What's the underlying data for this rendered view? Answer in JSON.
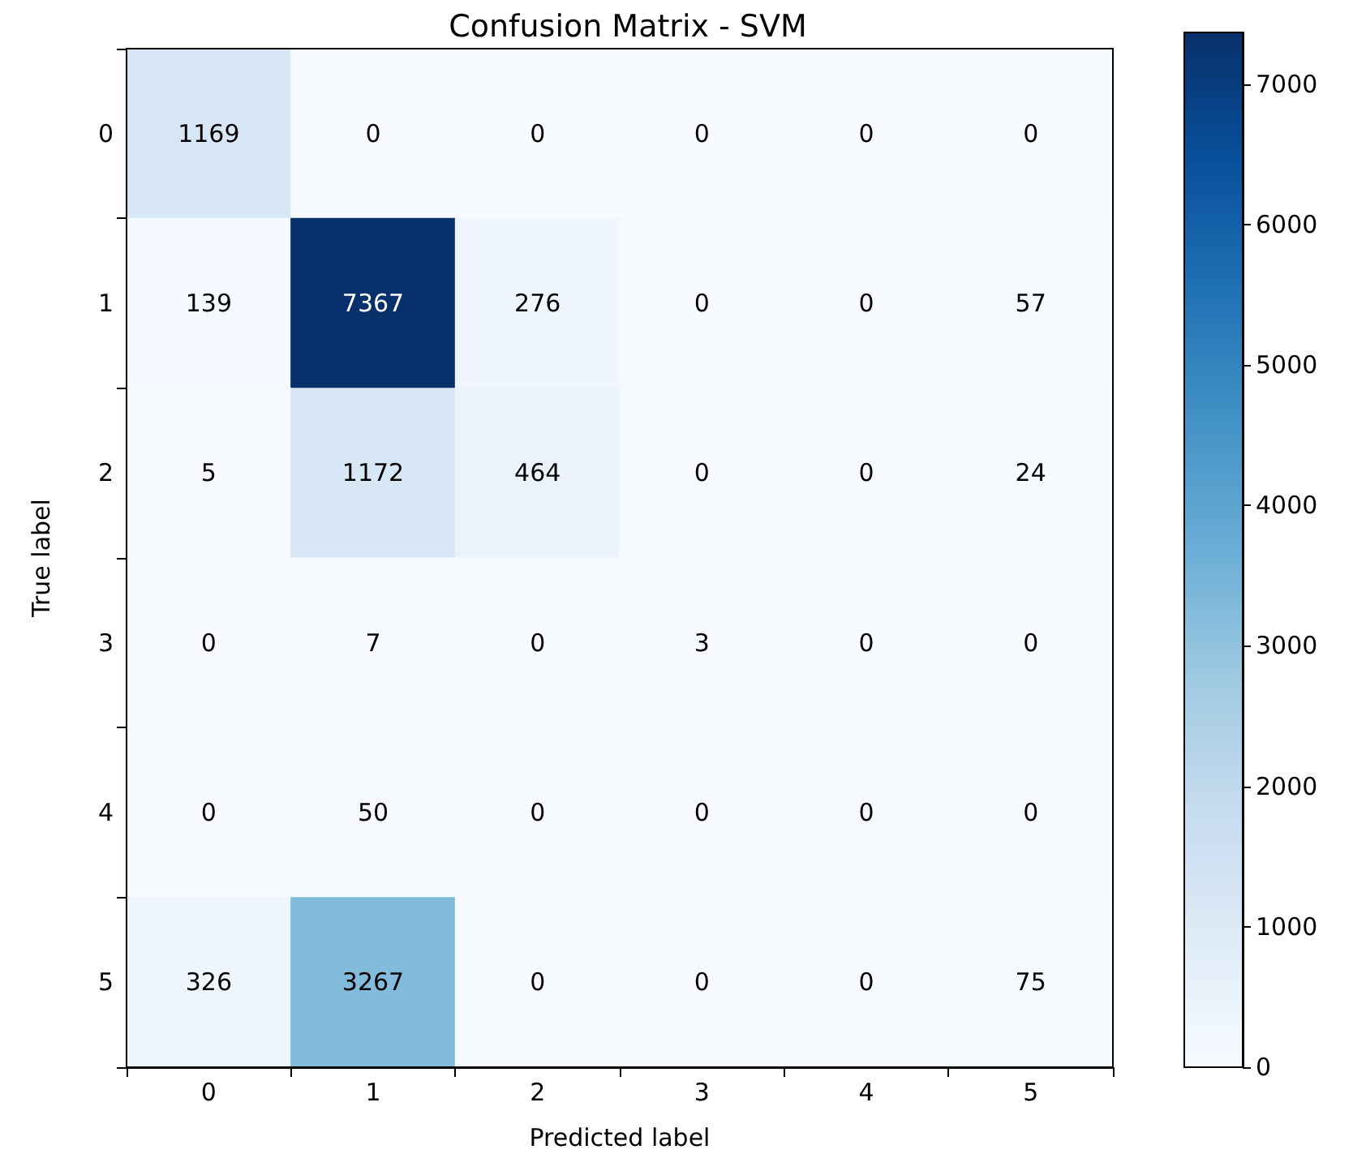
{
  "chart_data": {
    "type": "heatmap",
    "title": "Confusion Matrix - SVM",
    "xlabel": "Predicted label",
    "ylabel": "True label",
    "categories": [
      "0",
      "1",
      "2",
      "3",
      "4",
      "5"
    ],
    "y_categories": [
      "0",
      "1",
      "2",
      "3",
      "4",
      "5"
    ],
    "cells": [
      [
        1169,
        0,
        0,
        0,
        0,
        0
      ],
      [
        139,
        7367,
        276,
        0,
        0,
        57
      ],
      [
        5,
        1172,
        464,
        0,
        0,
        24
      ],
      [
        0,
        7,
        0,
        3,
        0,
        0
      ],
      [
        0,
        50,
        0,
        0,
        0,
        0
      ],
      [
        326,
        3267,
        0,
        0,
        0,
        75
      ]
    ],
    "clim": [
      0,
      7367
    ],
    "cticks": [
      0,
      1000,
      2000,
      3000,
      4000,
      5000,
      6000,
      7000
    ],
    "data_labels": true
  }
}
